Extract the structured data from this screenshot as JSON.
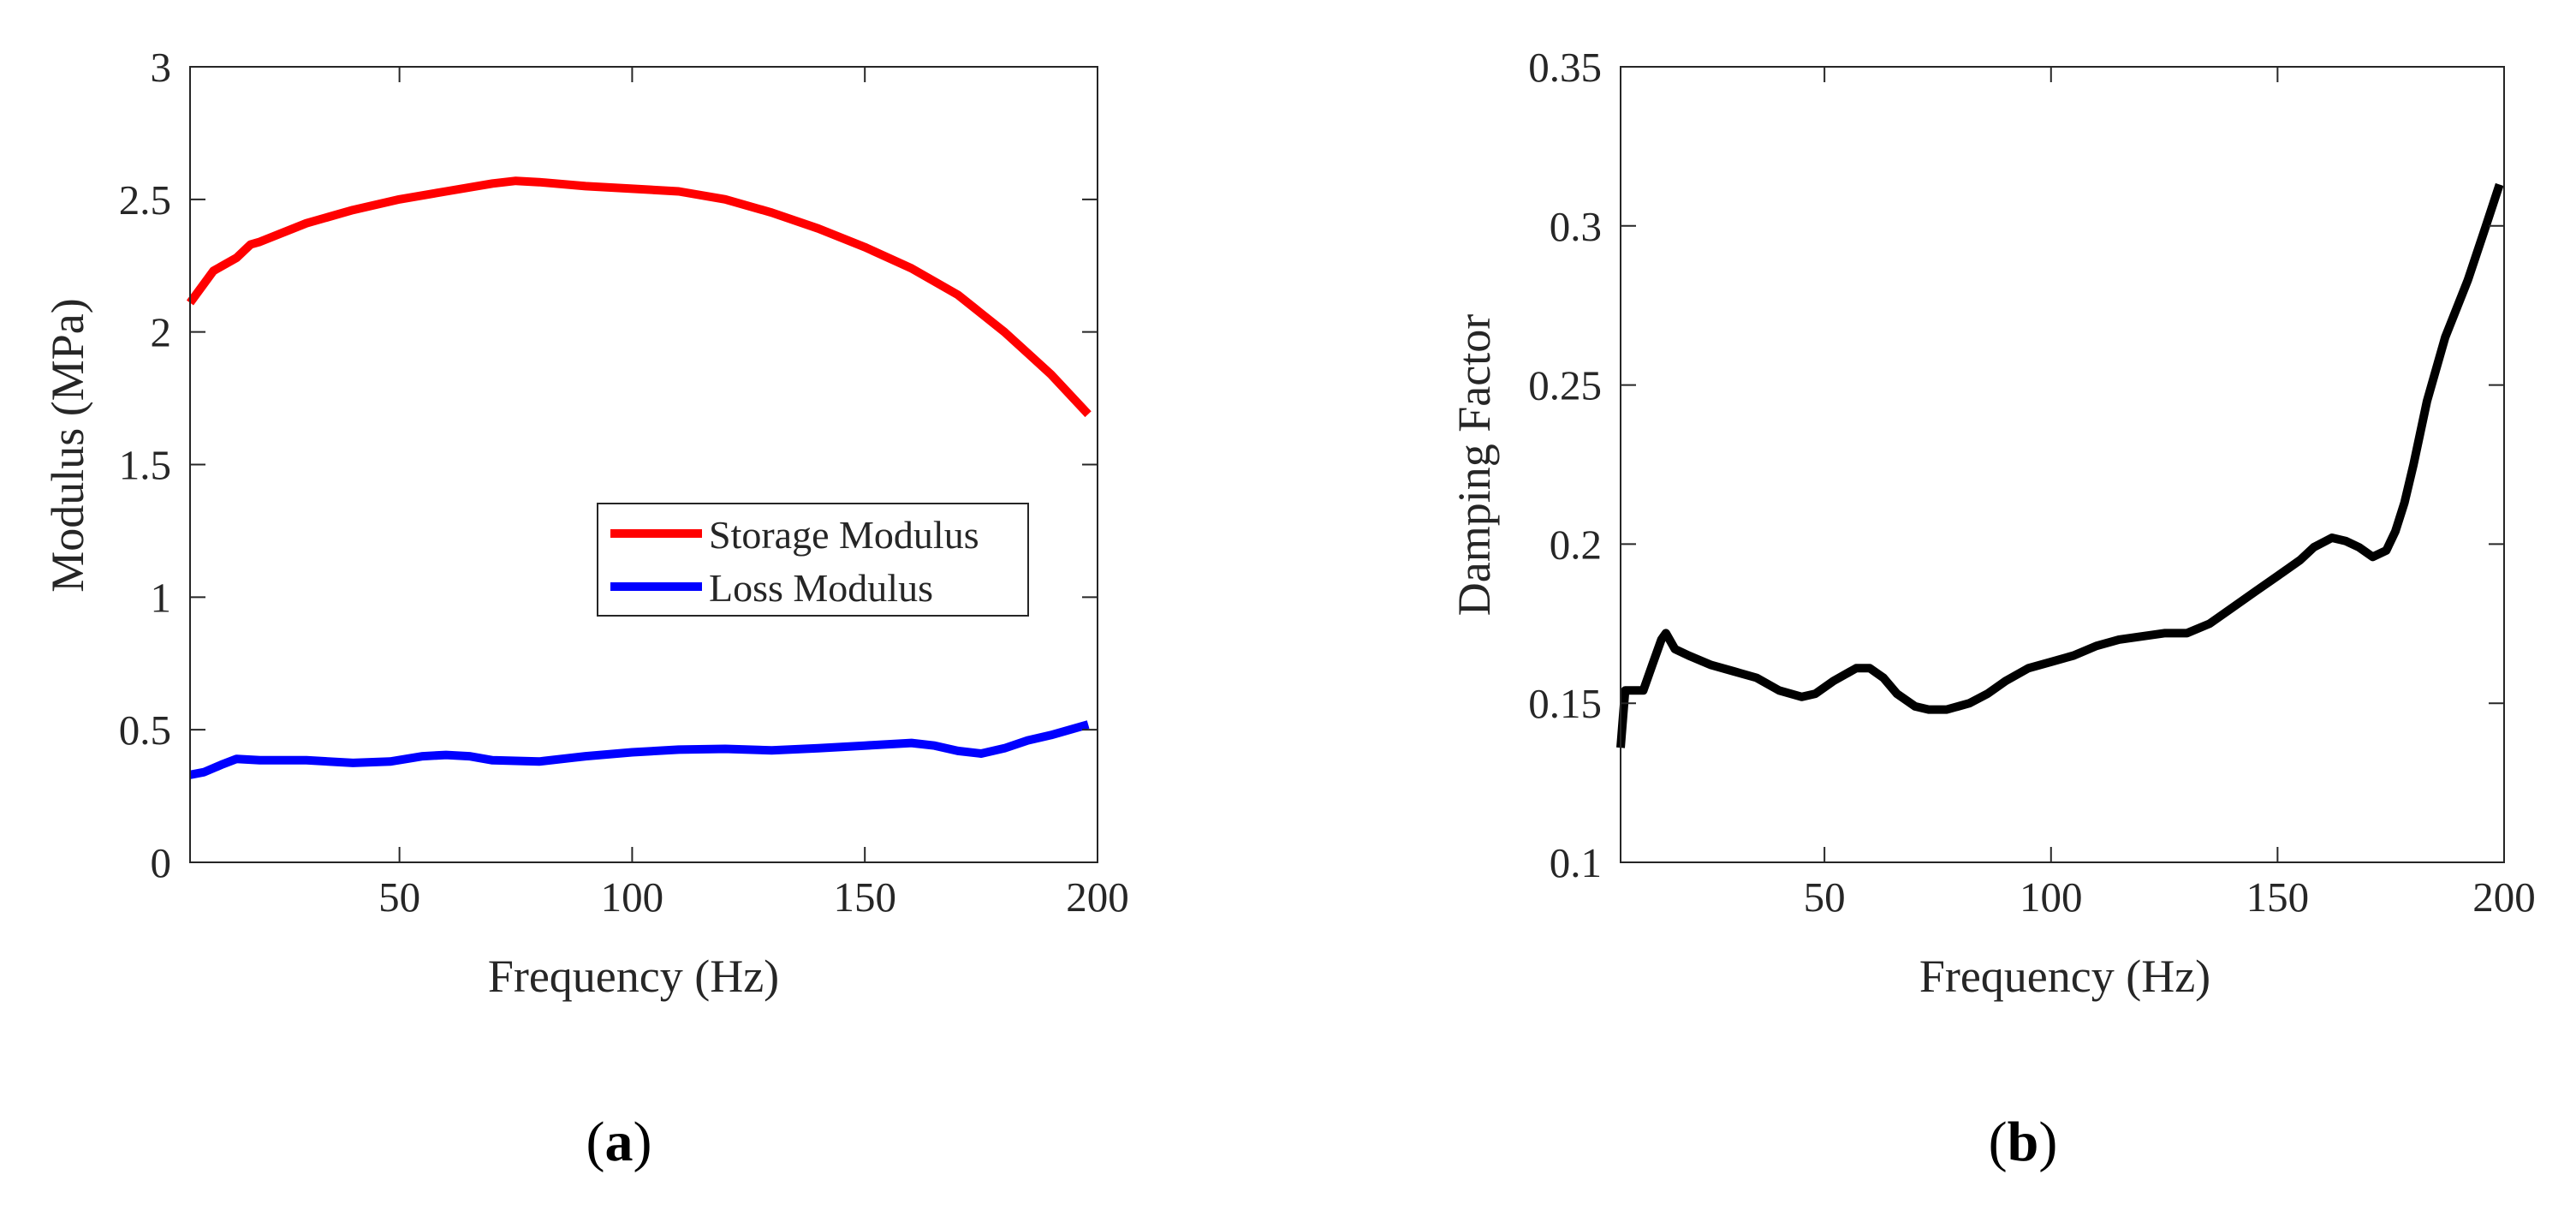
{
  "colors": {
    "storage": "#ff0000",
    "loss": "#0000ff",
    "damping": "#000000",
    "axis": "#262626"
  },
  "chart_data": [
    {
      "type": "line",
      "panel": "a",
      "panel_label": {
        "open": "(",
        "letter": "a",
        "close": ")"
      },
      "title": "",
      "xlabel": "Frequency (Hz)",
      "ylabel": "Modulus (MPa)",
      "xlim": [
        5,
        200
      ],
      "ylim": [
        0,
        3
      ],
      "xticks": [
        50,
        100,
        150,
        200
      ],
      "xtick_labels": [
        "50",
        "100",
        "150",
        "200"
      ],
      "yticks": [
        0,
        0.5,
        1,
        1.5,
        2,
        2.5,
        3
      ],
      "ytick_labels": [
        "0",
        "0.5",
        "1",
        "1.5",
        "2",
        "2.5",
        "3"
      ],
      "grid": false,
      "legend_position": "center-right",
      "series": [
        {
          "name": "Storage Modulus",
          "color_key": "storage",
          "x": [
            5,
            10,
            15,
            18,
            20,
            30,
            40,
            50,
            60,
            70,
            75,
            80,
            90,
            100,
            110,
            120,
            130,
            140,
            150,
            160,
            170,
            175,
            180,
            185,
            190,
            198
          ],
          "y": [
            2.11,
            2.23,
            2.28,
            2.33,
            2.34,
            2.41,
            2.46,
            2.5,
            2.53,
            2.56,
            2.57,
            2.565,
            2.55,
            2.54,
            2.53,
            2.5,
            2.45,
            2.39,
            2.32,
            2.24,
            2.14,
            2.07,
            2.0,
            1.92,
            1.84,
            1.69
          ]
        },
        {
          "name": "Loss Modulus",
          "color_key": "loss",
          "x": [
            5,
            8,
            12,
            15,
            20,
            30,
            40,
            48,
            55,
            60,
            65,
            70,
            80,
            90,
            100,
            110,
            120,
            130,
            140,
            150,
            160,
            165,
            170,
            175,
            180,
            185,
            190,
            198
          ],
          "y": [
            0.33,
            0.34,
            0.37,
            0.39,
            0.385,
            0.385,
            0.375,
            0.38,
            0.4,
            0.405,
            0.4,
            0.385,
            0.38,
            0.4,
            0.415,
            0.425,
            0.428,
            0.422,
            0.43,
            0.44,
            0.45,
            0.44,
            0.42,
            0.41,
            0.43,
            0.46,
            0.48,
            0.52
          ]
        }
      ]
    },
    {
      "type": "line",
      "panel": "b",
      "panel_label": {
        "open": "(",
        "letter": "b",
        "close": ")"
      },
      "title": "",
      "xlabel": "Frequency (Hz)",
      "ylabel": "Damping Factor",
      "xlim": [
        5,
        200
      ],
      "ylim": [
        0.1,
        0.35
      ],
      "xticks": [
        50,
        100,
        150,
        200
      ],
      "xtick_labels": [
        "50",
        "100",
        "150",
        "200"
      ],
      "yticks": [
        0.1,
        0.15,
        0.2,
        0.25,
        0.3,
        0.35
      ],
      "ytick_labels": [
        "0.1",
        "0.15",
        "0.2",
        "0.25",
        "0.3",
        "0.35"
      ],
      "grid": false,
      "legend_position": "none",
      "series": [
        {
          "name": "Damping Factor",
          "color_key": "damping",
          "x": [
            5,
            6,
            7,
            10,
            12,
            14,
            15,
            17,
            20,
            25,
            30,
            35,
            40,
            45,
            48,
            52,
            57,
            60,
            63,
            66,
            70,
            73,
            77,
            82,
            86,
            90,
            95,
            100,
            105,
            110,
            115,
            120,
            125,
            130,
            135,
            140,
            145,
            150,
            155,
            158,
            162,
            165,
            168,
            171,
            174,
            176,
            178,
            180,
            183,
            187,
            192,
            196,
            199
          ],
          "y": [
            0.136,
            0.154,
            0.154,
            0.154,
            0.162,
            0.17,
            0.172,
            0.167,
            0.165,
            0.162,
            0.16,
            0.158,
            0.154,
            0.152,
            0.153,
            0.157,
            0.161,
            0.161,
            0.158,
            0.153,
            0.149,
            0.148,
            0.148,
            0.15,
            0.153,
            0.157,
            0.161,
            0.163,
            0.165,
            0.168,
            0.17,
            0.171,
            0.172,
            0.172,
            0.175,
            0.18,
            0.185,
            0.19,
            0.195,
            0.199,
            0.202,
            0.201,
            0.199,
            0.196,
            0.198,
            0.204,
            0.213,
            0.225,
            0.245,
            0.265,
            0.283,
            0.3,
            0.313
          ]
        }
      ]
    }
  ]
}
